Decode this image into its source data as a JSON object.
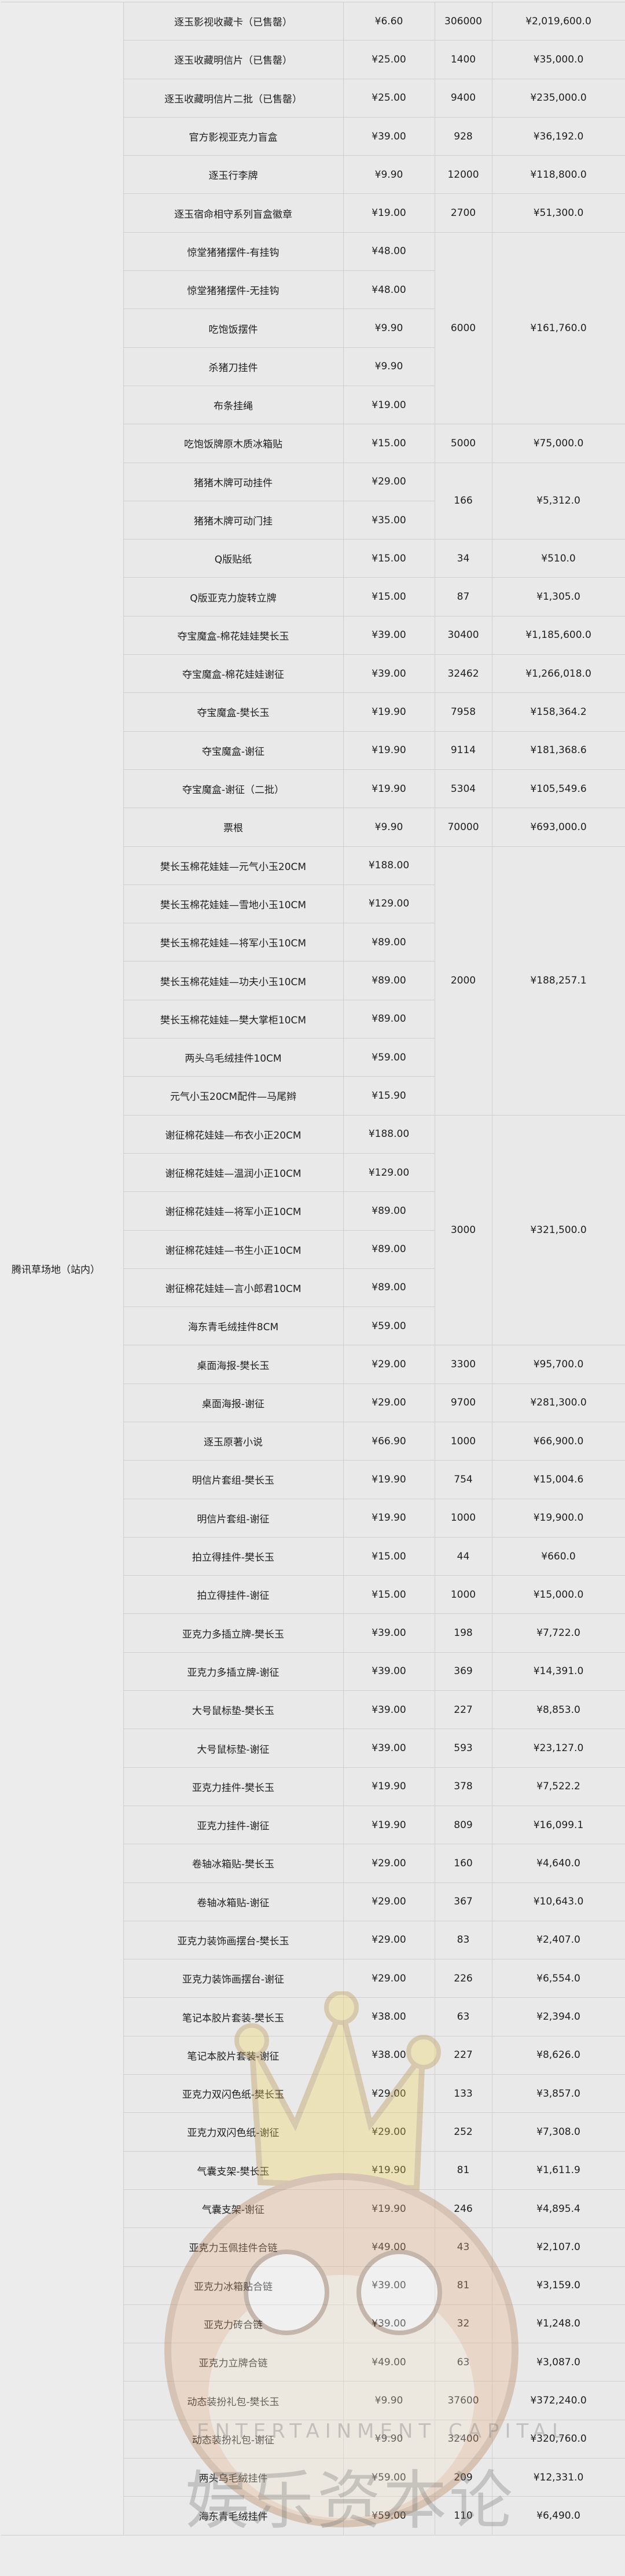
{
  "platform": "腾讯草场地（站内）",
  "watermark": {
    "en": "ENTERTAINMENT CAPITAL",
    "cn": "娱乐资本论",
    "crown_color": "#f2d55c",
    "face_color": "#d9955a"
  },
  "groups": [
    {
      "qty": "306000",
      "total": "¥2,019,600.0",
      "items": [
        {
          "name": "逐玉影视收藏卡（已售罄）",
          "price": "¥6.60"
        }
      ]
    },
    {
      "qty": "1400",
      "total": "¥35,000.0",
      "items": [
        {
          "name": "逐玉收藏明信片（已售罄）",
          "price": "¥25.00"
        }
      ]
    },
    {
      "qty": "9400",
      "total": "¥235,000.0",
      "items": [
        {
          "name": "逐玉收藏明信片二批（已售罄）",
          "price": "¥25.00"
        }
      ]
    },
    {
      "qty": "928",
      "total": "¥36,192.0",
      "items": [
        {
          "name": "官方影视亚克力盲盒",
          "price": "¥39.00"
        }
      ]
    },
    {
      "qty": "12000",
      "total": "¥118,800.0",
      "items": [
        {
          "name": "逐玉行李牌",
          "price": "¥9.90"
        }
      ]
    },
    {
      "qty": "2700",
      "total": "¥51,300.0",
      "items": [
        {
          "name": "逐玉宿命相守系列盲盒徽章",
          "price": "¥19.00"
        }
      ]
    },
    {
      "qty": "6000",
      "total": "¥161,760.0",
      "items": [
        {
          "name": "惊堂猪猪摆件-有挂钩",
          "price": "¥48.00"
        },
        {
          "name": "惊堂猪猪摆件-无挂钩",
          "price": "¥48.00"
        },
        {
          "name": "吃饱饭摆件",
          "price": "¥9.90"
        },
        {
          "name": "杀猪刀挂件",
          "price": "¥9.90"
        },
        {
          "name": "布条挂绳",
          "price": "¥19.00"
        }
      ]
    },
    {
      "qty": "5000",
      "total": "¥75,000.0",
      "items": [
        {
          "name": "吃饱饭牌原木质冰箱贴",
          "price": "¥15.00"
        }
      ]
    },
    {
      "qty": "166",
      "total": "¥5,312.0",
      "items": [
        {
          "name": "猪猪木牌可动挂件",
          "price": "¥29.00"
        },
        {
          "name": "猪猪木牌可动门挂",
          "price": "¥35.00"
        }
      ]
    },
    {
      "qty": "34",
      "total": "¥510.0",
      "items": [
        {
          "name": "Q版贴纸",
          "price": "¥15.00"
        }
      ]
    },
    {
      "qty": "87",
      "total": "¥1,305.0",
      "items": [
        {
          "name": "Q版亚克力旋转立牌",
          "price": "¥15.00"
        }
      ]
    },
    {
      "qty": "30400",
      "total": "¥1,185,600.0",
      "items": [
        {
          "name": "夺宝魔盒-棉花娃娃樊长玉",
          "price": "¥39.00"
        }
      ]
    },
    {
      "qty": "32462",
      "total": "¥1,266,018.0",
      "items": [
        {
          "name": "夺宝魔盒-棉花娃娃谢征",
          "price": "¥39.00"
        }
      ]
    },
    {
      "qty": "7958",
      "total": "¥158,364.2",
      "items": [
        {
          "name": "夺宝魔盒-樊长玉",
          "price": "¥19.90"
        }
      ]
    },
    {
      "qty": "9114",
      "total": "¥181,368.6",
      "items": [
        {
          "name": "夺宝魔盒-谢征",
          "price": "¥19.90"
        }
      ]
    },
    {
      "qty": "5304",
      "total": "¥105,549.6",
      "items": [
        {
          "name": "夺宝魔盒-谢征（二批）",
          "price": "¥19.90"
        }
      ]
    },
    {
      "qty": "70000",
      "total": "¥693,000.0",
      "items": [
        {
          "name": "票根",
          "price": "¥9.90"
        }
      ]
    },
    {
      "qty": "2000",
      "total": "¥188,257.1",
      "items": [
        {
          "name": "樊长玉棉花娃娃—元气小玉20CM",
          "price": "¥188.00"
        },
        {
          "name": "樊长玉棉花娃娃—雪地小玉10CM",
          "price": "¥129.00"
        },
        {
          "name": "樊长玉棉花娃娃—将军小玉10CM",
          "price": "¥89.00"
        },
        {
          "name": "樊长玉棉花娃娃—功夫小玉10CM",
          "price": "¥89.00"
        },
        {
          "name": "樊长玉棉花娃娃—樊大掌柜10CM",
          "price": "¥89.00"
        },
        {
          "name": "两头乌毛绒挂件10CM",
          "price": "¥59.00"
        },
        {
          "name": "元气小玉20CM配件—马尾辫",
          "price": "¥15.90"
        }
      ]
    },
    {
      "qty": "3000",
      "total": "¥321,500.0",
      "items": [
        {
          "name": "谢征棉花娃娃—布衣小正20CM",
          "price": "¥188.00"
        },
        {
          "name": "谢征棉花娃娃—温润小正10CM",
          "price": "¥129.00"
        },
        {
          "name": "谢征棉花娃娃—将军小正10CM",
          "price": "¥89.00"
        },
        {
          "name": "谢征棉花娃娃—书生小正10CM",
          "price": "¥89.00"
        },
        {
          "name": "谢征棉花娃娃—言小郎君10CM",
          "price": "¥89.00"
        },
        {
          "name": "海东青毛绒挂件8CM",
          "price": "¥59.00"
        }
      ]
    },
    {
      "qty": "3300",
      "total": "¥95,700.0",
      "items": [
        {
          "name": "桌面海报-樊长玉",
          "price": "¥29.00"
        }
      ]
    },
    {
      "qty": "9700",
      "total": "¥281,300.0",
      "items": [
        {
          "name": "桌面海报-谢征",
          "price": "¥29.00"
        }
      ]
    },
    {
      "qty": "1000",
      "total": "¥66,900.0",
      "items": [
        {
          "name": "逐玉原著小说",
          "price": "¥66.90"
        }
      ]
    },
    {
      "qty": "754",
      "total": "¥15,004.6",
      "items": [
        {
          "name": "明信片套组-樊长玉",
          "price": "¥19.90"
        }
      ]
    },
    {
      "qty": "1000",
      "total": "¥19,900.0",
      "items": [
        {
          "name": "明信片套组-谢征",
          "price": "¥19.90"
        }
      ]
    },
    {
      "qty": "44",
      "total": "¥660.0",
      "items": [
        {
          "name": "拍立得挂件-樊长玉",
          "price": "¥15.00"
        }
      ]
    },
    {
      "qty": "1000",
      "total": "¥15,000.0",
      "items": [
        {
          "name": "拍立得挂件-谢征",
          "price": "¥15.00"
        }
      ]
    },
    {
      "qty": "198",
      "total": "¥7,722.0",
      "items": [
        {
          "name": "亚克力多插立牌-樊长玉",
          "price": "¥39.00"
        }
      ]
    },
    {
      "qty": "369",
      "total": "¥14,391.0",
      "items": [
        {
          "name": "亚克力多插立牌-谢征",
          "price": "¥39.00"
        }
      ]
    },
    {
      "qty": "227",
      "total": "¥8,853.0",
      "items": [
        {
          "name": "大号鼠标垫-樊长玉",
          "price": "¥39.00"
        }
      ]
    },
    {
      "qty": "593",
      "total": "¥23,127.0",
      "items": [
        {
          "name": "大号鼠标垫-谢征",
          "price": "¥39.00"
        }
      ]
    },
    {
      "qty": "378",
      "total": "¥7,522.2",
      "items": [
        {
          "name": "亚克力挂件-樊长玉",
          "price": "¥19.90"
        }
      ]
    },
    {
      "qty": "809",
      "total": "¥16,099.1",
      "items": [
        {
          "name": "亚克力挂件-谢征",
          "price": "¥19.90"
        }
      ]
    },
    {
      "qty": "160",
      "total": "¥4,640.0",
      "items": [
        {
          "name": "卷轴冰箱贴-樊长玉",
          "price": "¥29.00"
        }
      ]
    },
    {
      "qty": "367",
      "total": "¥10,643.0",
      "items": [
        {
          "name": "卷轴冰箱贴-谢征",
          "price": "¥29.00"
        }
      ]
    },
    {
      "qty": "83",
      "total": "¥2,407.0",
      "items": [
        {
          "name": "亚克力装饰画摆台-樊长玉",
          "price": "¥29.00"
        }
      ]
    },
    {
      "qty": "226",
      "total": "¥6,554.0",
      "items": [
        {
          "name": "亚克力装饰画摆台-谢征",
          "price": "¥29.00"
        }
      ]
    },
    {
      "qty": "63",
      "total": "¥2,394.0",
      "items": [
        {
          "name": "笔记本胶片套装-樊长玉",
          "price": "¥38.00"
        }
      ]
    },
    {
      "qty": "227",
      "total": "¥8,626.0",
      "items": [
        {
          "name": "笔记本胶片套装-谢征",
          "price": "¥38.00"
        }
      ]
    },
    {
      "qty": "133",
      "total": "¥3,857.0",
      "items": [
        {
          "name": "亚克力双闪色纸-樊长玉",
          "price": "¥29.00"
        }
      ]
    },
    {
      "qty": "252",
      "total": "¥7,308.0",
      "items": [
        {
          "name": "亚克力双闪色纸-谢征",
          "price": "¥29.00"
        }
      ]
    },
    {
      "qty": "81",
      "total": "¥1,611.9",
      "items": [
        {
          "name": "气囊支架-樊长玉",
          "price": "¥19.90"
        }
      ]
    },
    {
      "qty": "246",
      "total": "¥4,895.4",
      "items": [
        {
          "name": "气囊支架-谢征",
          "price": "¥19.90"
        }
      ]
    },
    {
      "qty": "43",
      "total": "¥2,107.0",
      "items": [
        {
          "name": "亚克力玉佩挂件合链",
          "price": "¥49.00"
        }
      ]
    },
    {
      "qty": "81",
      "total": "¥3,159.0",
      "items": [
        {
          "name": "亚克力冰箱贴合链",
          "price": "¥39.00"
        }
      ]
    },
    {
      "qty": "32",
      "total": "¥1,248.0",
      "items": [
        {
          "name": "亚克力砖合链",
          "price": "¥39.00"
        }
      ]
    },
    {
      "qty": "63",
      "total": "¥3,087.0",
      "items": [
        {
          "name": "亚克力立牌合链",
          "price": "¥49.00"
        }
      ]
    },
    {
      "qty": "37600",
      "total": "¥372,240.0",
      "items": [
        {
          "name": "动态装扮礼包-樊长玉",
          "price": "¥9.90"
        }
      ]
    },
    {
      "qty": "32400",
      "total": "¥320,760.0",
      "items": [
        {
          "name": "动态装扮礼包-谢征",
          "price": "¥9.90"
        }
      ]
    },
    {
      "qty": "209",
      "total": "¥12,331.0",
      "items": [
        {
          "name": "两头乌毛绒挂件",
          "price": "¥59.00"
        }
      ]
    },
    {
      "qty": "110",
      "total": "¥6,490.0",
      "items": [
        {
          "name": "海东青毛绒挂件",
          "price": "¥59.00"
        }
      ]
    }
  ]
}
